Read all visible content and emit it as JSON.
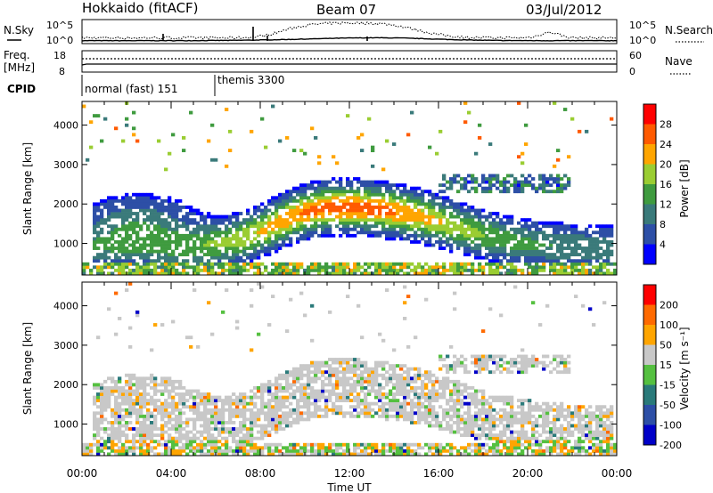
{
  "header": {
    "station": "Hokkaido (fitACF)",
    "beam": "Beam 07",
    "date": "03/Jul/2012"
  },
  "noise_panel": {
    "left_label": "N.Sky",
    "right_label": "N.Search",
    "left_ticks": [
      "10^5",
      "10^0"
    ],
    "right_ticks": [
      "10^5",
      "10^0"
    ]
  },
  "freq_panel": {
    "left_label_1": "Freq.",
    "left_label_2": "[MHz]",
    "right_label": "Nave",
    "left_ticks": [
      "18",
      "8"
    ],
    "right_ticks": [
      "60",
      "0"
    ]
  },
  "cpid": {
    "label": "CPID",
    "modes": [
      {
        "name": "normal (fast) 151",
        "start_hour": 0
      },
      {
        "name": "themis 3300",
        "start_hour": 6
      }
    ]
  },
  "chart_data": [
    {
      "type": "heatmap",
      "name": "power",
      "ylabel": "Slant Range [km]",
      "yticks": [
        1000,
        2000,
        3000,
        4000
      ],
      "ylim": [
        200,
        4600
      ],
      "xlim_hours": [
        0,
        24
      ],
      "colorbar_label": "Power [dB]",
      "colorbar_ticks": [
        "28",
        "24",
        "20",
        "16",
        "12",
        "8",
        "4"
      ],
      "colors": [
        "#0000ff",
        "#2d4fa6",
        "#3a7a7a",
        "#3f9b3f",
        "#9acd32",
        "#ffa500",
        "#ff5a00",
        "#ff0000"
      ]
    },
    {
      "type": "heatmap",
      "name": "velocity",
      "ylabel": "Slant Range [km]",
      "yticks": [
        1000,
        2000,
        3000,
        4000
      ],
      "ylim": [
        200,
        4600
      ],
      "xlim_hours": [
        0,
        24
      ],
      "colorbar_label": "Velocity [m s⁻¹]",
      "colorbar_ticks": [
        "200",
        "100",
        "50",
        "15",
        "-15",
        "-50",
        "-100",
        "-200"
      ],
      "colors": [
        "#0000c8",
        "#2d4fa6",
        "#2a7a7a",
        "#55c040",
        "#c8c8c8",
        "#ffa500",
        "#ff6a00",
        "#ff0000"
      ]
    }
  ],
  "xaxis": {
    "ticks": [
      "00:00",
      "04:00",
      "08:00",
      "12:00",
      "16:00",
      "20:00",
      "00:00"
    ],
    "label": "Time UT"
  }
}
